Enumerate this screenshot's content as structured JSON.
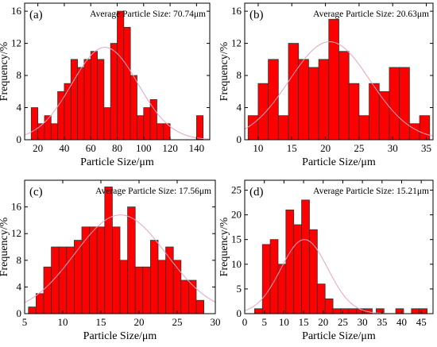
{
  "theme": {
    "bar_color": "#ff0000",
    "bar_edge": "#333333",
    "fit_color": "#e6a3c2"
  },
  "chart_data": [
    {
      "type": "bar",
      "panel_label": "(a)",
      "annotation": "Average Particle Size: 70.74μm",
      "xlabel": "Particle Size/μm",
      "ylabel": "Frequency/%",
      "xlim": [
        10,
        150
      ],
      "ylim": [
        0,
        17
      ],
      "xticks": [
        20,
        40,
        60,
        80,
        100,
        120,
        140
      ],
      "yticks": [
        0,
        4,
        8,
        12,
        16
      ],
      "bins": [
        [
          15,
          20,
          4
        ],
        [
          20,
          25,
          2
        ],
        [
          25,
          30,
          3
        ],
        [
          30,
          35,
          2
        ],
        [
          35,
          40,
          6
        ],
        [
          40,
          45,
          7
        ],
        [
          45,
          50,
          10
        ],
        [
          50,
          55,
          9
        ],
        [
          55,
          60,
          10
        ],
        [
          60,
          65,
          11
        ],
        [
          65,
          70,
          10
        ],
        [
          70,
          75,
          4
        ],
        [
          75,
          80,
          12
        ],
        [
          80,
          85,
          16
        ],
        [
          85,
          90,
          14
        ],
        [
          90,
          95,
          8
        ],
        [
          95,
          100,
          3
        ],
        [
          100,
          105,
          4
        ],
        [
          105,
          110,
          5
        ],
        [
          110,
          115,
          2
        ],
        [
          115,
          120,
          2
        ],
        [
          140,
          145,
          3
        ]
      ],
      "fit": {
        "mean": 70.74,
        "sd": 25,
        "peak": 11.5
      },
      "grid": false
    },
    {
      "type": "bar",
      "panel_label": "(b)",
      "annotation": "Average Particle Size: 20.63μm",
      "xlabel": "Particle Size/μm",
      "ylabel": "Frequency/%",
      "xlim": [
        8,
        36
      ],
      "ylim": [
        0,
        17
      ],
      "xticks": [
        10,
        15,
        20,
        25,
        30,
        35
      ],
      "yticks": [
        0,
        4,
        8,
        12,
        16
      ],
      "bins": [
        [
          8.5,
          10,
          3
        ],
        [
          10,
          11.5,
          7
        ],
        [
          11.5,
          13,
          10
        ],
        [
          13,
          14.5,
          3
        ],
        [
          14.5,
          16,
          12
        ],
        [
          16,
          17.5,
          10
        ],
        [
          17.5,
          19,
          9
        ],
        [
          19,
          20.5,
          10
        ],
        [
          20.5,
          22,
          15
        ],
        [
          22,
          23.5,
          11
        ],
        [
          23.5,
          25,
          7
        ],
        [
          25,
          26.5,
          3
        ],
        [
          26.5,
          28,
          7
        ],
        [
          28,
          29.5,
          6
        ],
        [
          29.5,
          31,
          9
        ],
        [
          31,
          32.5,
          9
        ],
        [
          32.5,
          34,
          2
        ],
        [
          34,
          35.5,
          3
        ]
      ],
      "fit": {
        "mean": 20.63,
        "sd": 6,
        "peak": 12.2
      },
      "grid": false
    },
    {
      "type": "bar",
      "panel_label": "(c)",
      "annotation": "Average Particle Size: 17.56μm",
      "xlabel": "Particle Size/μm",
      "ylabel": "Frequency/%",
      "xlim": [
        5,
        30
      ],
      "ylim": [
        0,
        20
      ],
      "xticks": [
        5,
        10,
        15,
        20,
        25,
        30
      ],
      "yticks": [
        0,
        4,
        8,
        12,
        16
      ],
      "bins": [
        [
          5.5,
          6.5,
          1
        ],
        [
          6.5,
          7.5,
          3
        ],
        [
          7.5,
          8.5,
          7
        ],
        [
          8.5,
          9.5,
          10
        ],
        [
          9.5,
          10.5,
          10
        ],
        [
          10.5,
          11.5,
          10
        ],
        [
          11.5,
          12.5,
          11
        ],
        [
          12.5,
          13.5,
          13
        ],
        [
          13.5,
          14.5,
          13
        ],
        [
          14.5,
          15.5,
          13
        ],
        [
          15.5,
          16.5,
          19
        ],
        [
          16.5,
          17.5,
          13
        ],
        [
          17.5,
          18.5,
          8
        ],
        [
          18.5,
          19.5,
          16
        ],
        [
          19.5,
          20.5,
          7
        ],
        [
          20.5,
          21.5,
          7
        ],
        [
          21.5,
          22.5,
          11
        ],
        [
          22.5,
          23.5,
          8
        ],
        [
          23.5,
          24.5,
          10
        ],
        [
          24.5,
          25.5,
          8
        ],
        [
          25.5,
          26.5,
          5
        ],
        [
          26.5,
          27.5,
          5
        ],
        [
          27.5,
          28.5,
          2
        ]
      ],
      "fit": {
        "mean": 17.56,
        "sd": 6,
        "peak": 14.8
      },
      "grid": false
    },
    {
      "type": "bar",
      "panel_label": "(d)",
      "annotation": "Average Particle Size: 15.21μm",
      "xlabel": "Particle Size/μm",
      "ylabel": "Frequency/%",
      "xlim": [
        0,
        48
      ],
      "ylim": [
        0,
        27
      ],
      "xticks": [
        0,
        5,
        10,
        15,
        20,
        25,
        30,
        35,
        40,
        45
      ],
      "yticks": [
        0,
        5,
        10,
        15,
        20,
        25
      ],
      "bins": [
        [
          2.5,
          4.5,
          1
        ],
        [
          4.5,
          6.5,
          14
        ],
        [
          6.5,
          8.5,
          15
        ],
        [
          8.5,
          10.5,
          10
        ],
        [
          10.5,
          12.5,
          21
        ],
        [
          12.5,
          14.5,
          18
        ],
        [
          14.5,
          16.5,
          23
        ],
        [
          16.5,
          18.5,
          17
        ],
        [
          18.5,
          20.5,
          6
        ],
        [
          20.5,
          22.5,
          3
        ],
        [
          22.5,
          24.5,
          1
        ],
        [
          24.5,
          26.5,
          1
        ],
        [
          26.5,
          28.5,
          1
        ],
        [
          28.5,
          30.5,
          1
        ],
        [
          30.5,
          32.5,
          1
        ],
        [
          33.5,
          35.5,
          1
        ],
        [
          38.5,
          40.5,
          1
        ],
        [
          42.5,
          44.5,
          1
        ],
        [
          44.5,
          46.5,
          1
        ]
      ],
      "fit": {
        "mean": 15.21,
        "sd": 6,
        "peak": 15
      },
      "grid": false
    }
  ]
}
